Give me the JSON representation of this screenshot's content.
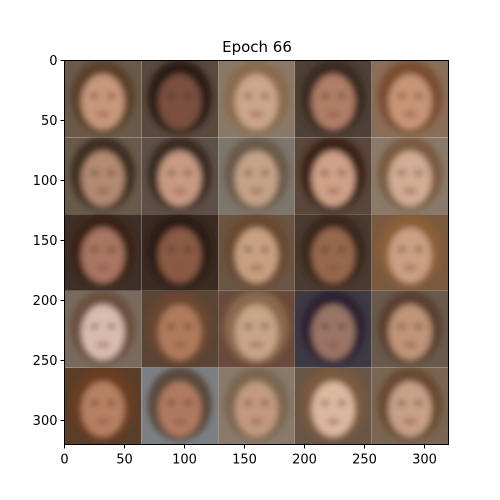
{
  "figure": {
    "title": "Epoch 66",
    "x_ticks": [
      0,
      50,
      100,
      150,
      200,
      250,
      300
    ],
    "y_ticks": [
      0,
      50,
      100,
      150,
      200,
      250,
      300
    ],
    "x_range": [
      0,
      320
    ],
    "y_range": [
      0,
      320
    ],
    "grid": {
      "rows": 5,
      "cols": 5
    }
  },
  "tiles": [
    {
      "bg": "#6b5a4a",
      "hair": "#5a3f2a",
      "skin": "#c7987a"
    },
    {
      "bg": "#5a4a3e",
      "hair": "#2a1d16",
      "skin": "#7a5040"
    },
    {
      "bg": "#8a7866",
      "hair": "#8a6a4e",
      "skin": "#cca68a"
    },
    {
      "bg": "#4e4036",
      "hair": "#3a2a20",
      "skin": "#b07e66"
    },
    {
      "bg": "#8a6e58",
      "hair": "#7a4e30",
      "skin": "#c79476"
    },
    {
      "bg": "#6a5a4c",
      "hair": "#3e2e24",
      "skin": "#b38a72"
    },
    {
      "bg": "#5e5048",
      "hair": "#3a2c24",
      "skin": "#c89a82"
    },
    {
      "bg": "#7d766c",
      "hair": "#6a5a48",
      "skin": "#c4a388"
    },
    {
      "bg": "#5a463a",
      "hair": "#3a2418",
      "skin": "#d0a088"
    },
    {
      "bg": "#8a7a6a",
      "hair": "#7a5a40",
      "skin": "#d2ac94"
    },
    {
      "bg": "#3e3028",
      "hair": "#3a2418",
      "skin": "#a87662"
    },
    {
      "bg": "#3a2a22",
      "hair": "#2a1a12",
      "skin": "#8a5a44"
    },
    {
      "bg": "#6a5442",
      "hair": "#6a4a30",
      "skin": "#c8a080"
    },
    {
      "bg": "#4a3a30",
      "hair": "#3a281e",
      "skin": "#96684e"
    },
    {
      "bg": "#7a5a40",
      "hair": "#8a5e38",
      "skin": "#caa082"
    },
    {
      "bg": "#7a6a5e",
      "hair": "#6a503e",
      "skin": "#d8bcae"
    },
    {
      "bg": "#5a4434",
      "hair": "#6a4630",
      "skin": "#b07a5c"
    },
    {
      "bg": "#6a4a3a",
      "hair": "#8a6a4e",
      "skin": "#c8a488"
    },
    {
      "bg": "#3e3a44",
      "hair": "#2e2430",
      "skin": "#9a7466"
    },
    {
      "bg": "#6a5a4c",
      "hair": "#5a4030",
      "skin": "#c09478"
    },
    {
      "bg": "#5a3e2a",
      "hair": "#6a3e22",
      "skin": "#b88062"
    },
    {
      "bg": "#7c8084",
      "hair": "#5a4a3e",
      "skin": "#b07a60"
    },
    {
      "bg": "#8a7a6c",
      "hair": "#7a6650",
      "skin": "#c29a80"
    },
    {
      "bg": "#6a5646",
      "hair": "#7a5a3e",
      "skin": "#dcb8a0"
    },
    {
      "bg": "#7a6652",
      "hair": "#6a4a30",
      "skin": "#c8a088"
    }
  ]
}
